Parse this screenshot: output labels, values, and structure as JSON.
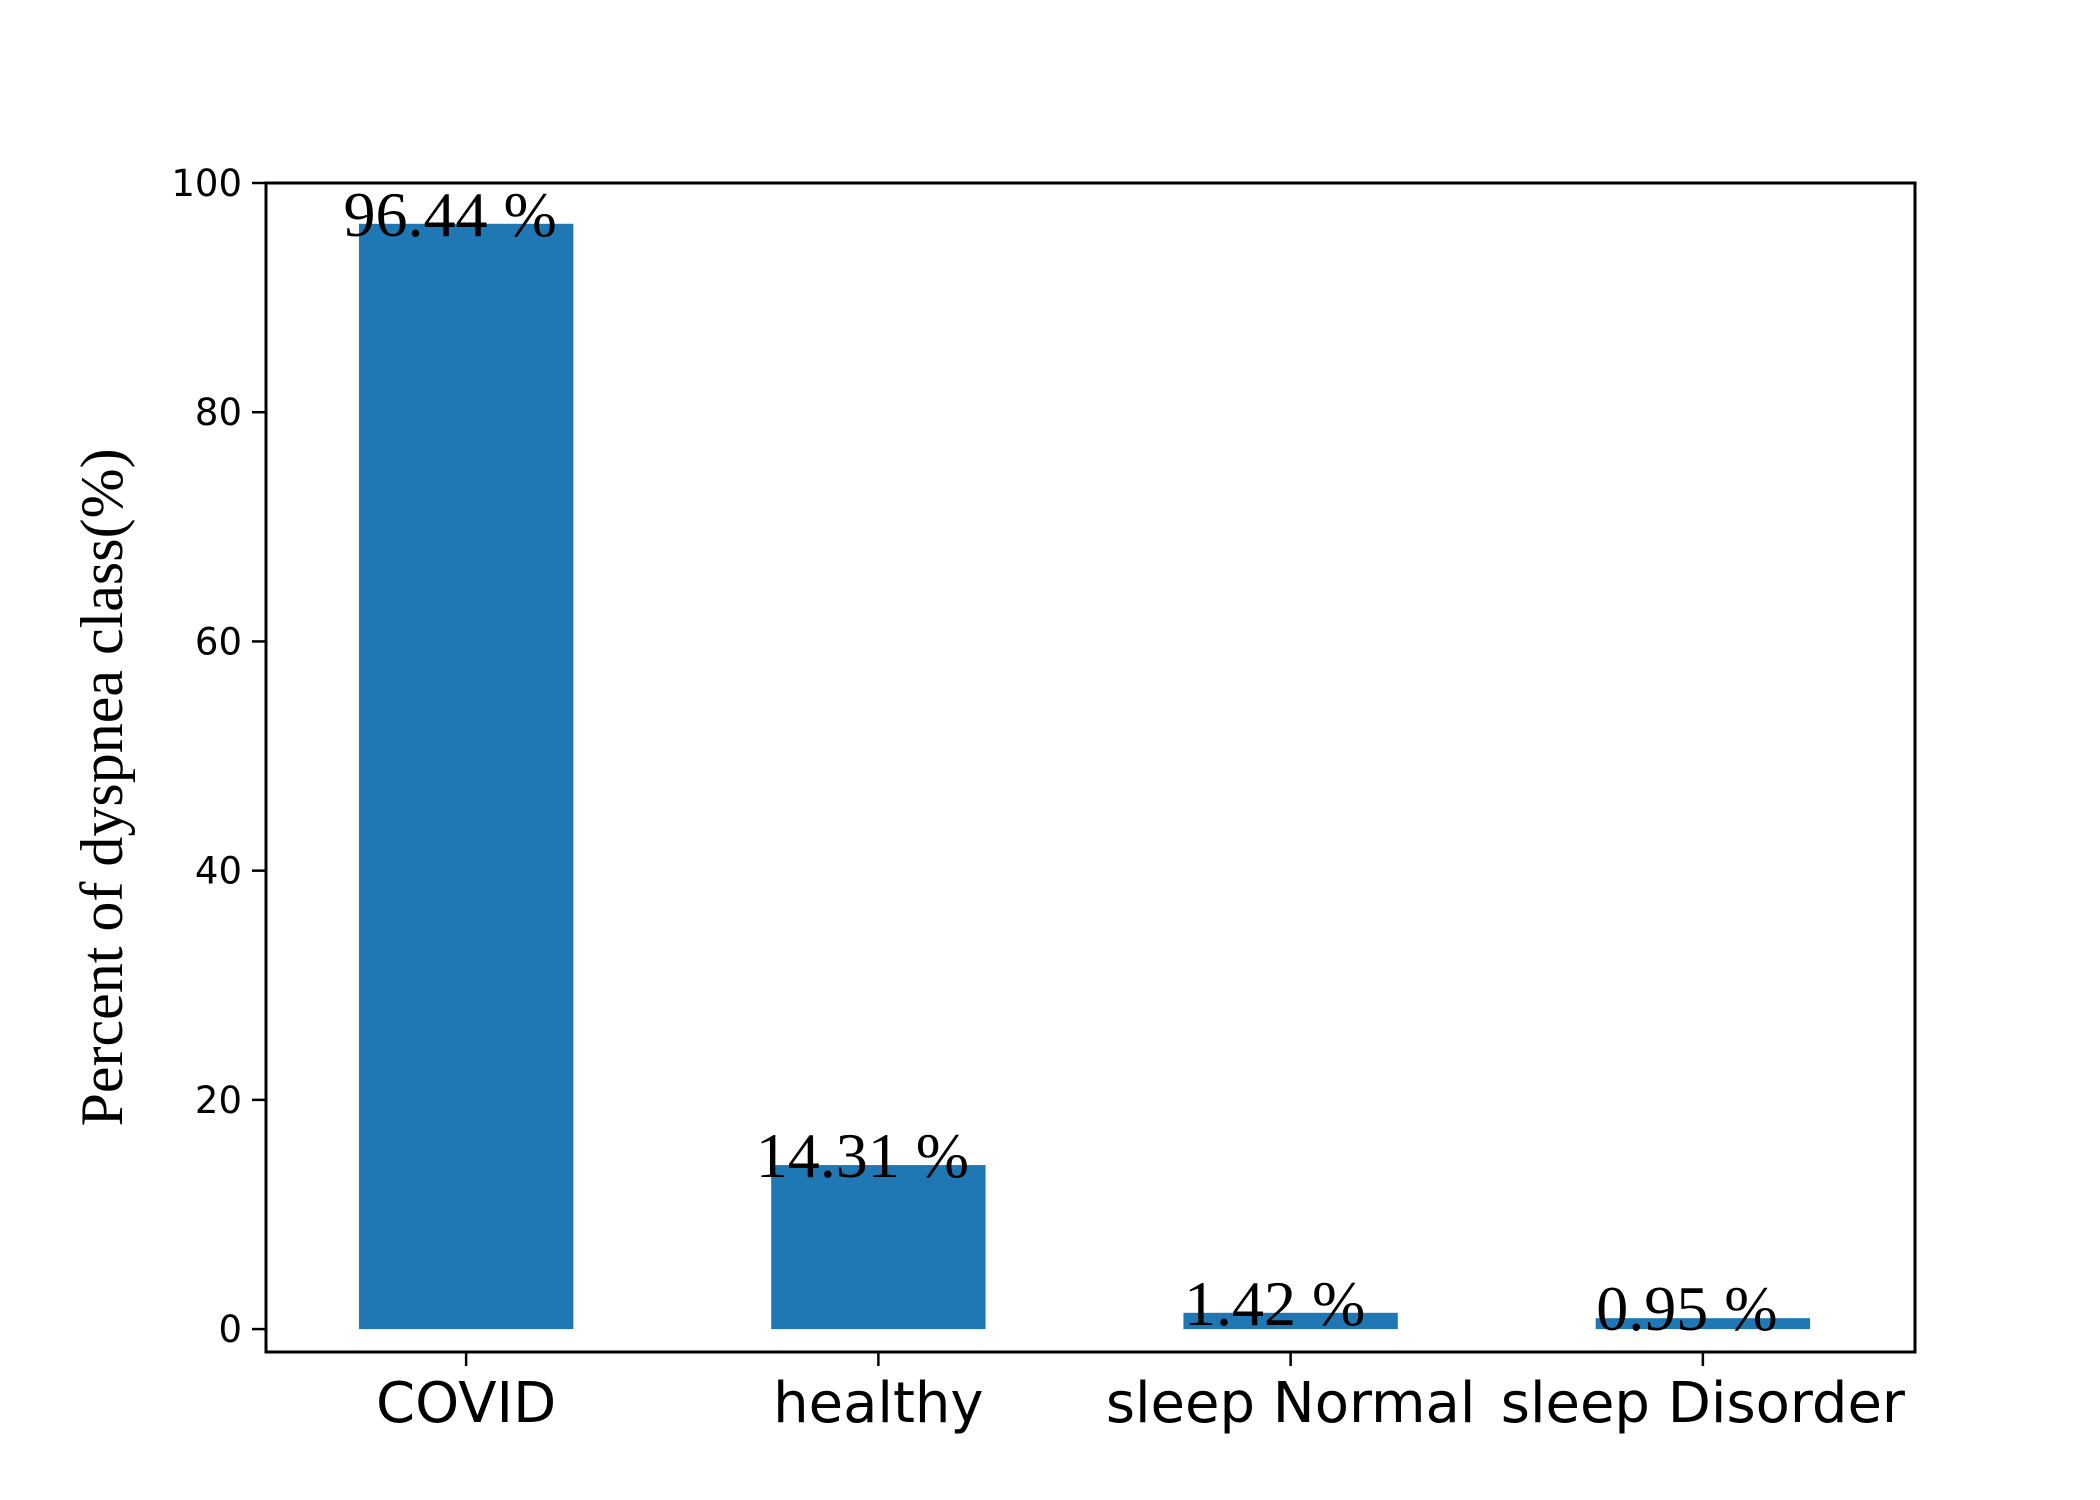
{
  "chart_data": {
    "type": "bar",
    "categories": [
      "COVID",
      "healthy",
      "sleep Normal",
      "sleep Disorder"
    ],
    "values": [
      96.44,
      14.31,
      1.42,
      0.95
    ],
    "value_labels": [
      "96.44 %",
      "14.31 %",
      "1.42 %",
      "0.95 %"
    ],
    "title": "",
    "xlabel": "",
    "ylabel": "Percent of dyspnea class(%)",
    "ylim": [
      -2,
      100
    ],
    "yticks": [
      0,
      20,
      40,
      60,
      80,
      100
    ],
    "bar_color": "#1f77b4",
    "grid": false,
    "legend": "none"
  }
}
